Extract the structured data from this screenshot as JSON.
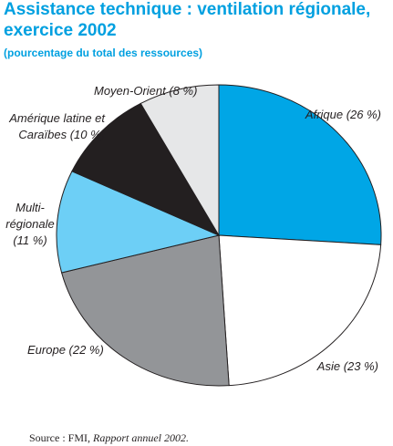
{
  "chart_data": {
    "type": "pie",
    "title": [
      "Assistance technique : ventilation régionale,",
      "exercice 2002"
    ],
    "subtitle": "(pourcentage du total des ressources)",
    "values": [
      26,
      23,
      22,
      11,
      10,
      8
    ],
    "value_labels": [
      [
        "Afrique (26 %)"
      ],
      [
        "Asie (23 %)"
      ],
      [
        "Europe (22 %)"
      ],
      [
        "Multi-",
        "régionale",
        "(11 %)"
      ],
      [
        "Amérique latine et",
        "Caraïbes (10 %)"
      ],
      [
        "Moyen-Orient (8 %)"
      ]
    ],
    "colors": [
      "#00a6e6",
      "#ffffff",
      "#939598",
      "#6dcff6",
      "#231f20",
      "#e6e7e8"
    ],
    "source": {
      "prefix": "Source : FMI,",
      "title": "Rapport annuel 2002."
    }
  }
}
